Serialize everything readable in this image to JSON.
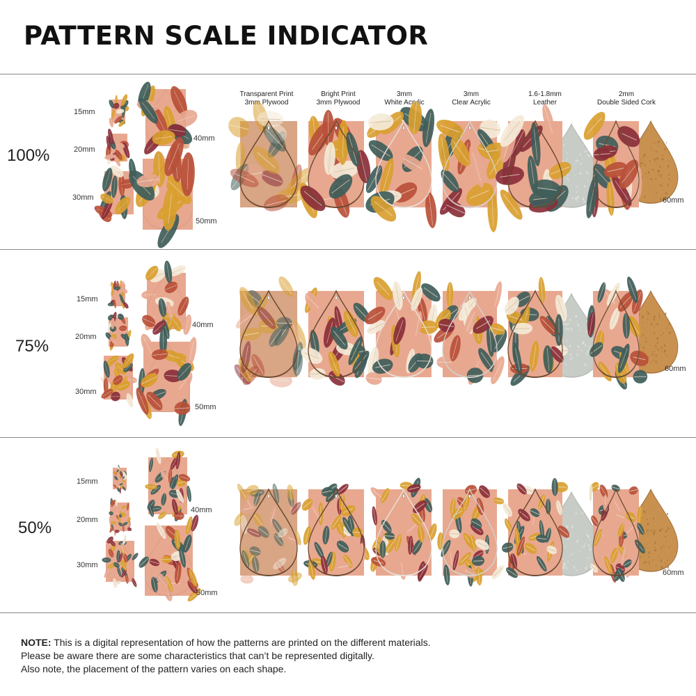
{
  "title": "PATTERN SCALE INDICATOR",
  "columns": [
    {
      "line1": "Transparent Print",
      "line2": "3mm Plywood"
    },
    {
      "line1": "Bright Print",
      "line2": "3mm Plywood"
    },
    {
      "line1": "3mm",
      "line2": "White Acrylic"
    },
    {
      "line1": "3mm",
      "line2": "Clear Acrylic"
    },
    {
      "line1": "1.6-1.8mm",
      "line2": "Leather"
    },
    {
      "line1": "2mm",
      "line2": "Double Sided Cork"
    }
  ],
  "sizes": {
    "s15": "15mm",
    "s20": "20mm",
    "s30": "30mm",
    "s40": "40mm",
    "s50": "50mm",
    "s60": "60mm"
  },
  "sections": [
    {
      "scale": "100%"
    },
    {
      "scale": "75%"
    },
    {
      "scale": "50%"
    }
  ],
  "note": {
    "label": "NOTE:",
    "line1": " This is a digital representation of how the patterns are printed on the different materials.",
    "line2": "Please be aware there are some characteristics that can’t be represented digitally.",
    "line3": "Also note, the placement of the pattern varies on each shape."
  },
  "colors": {
    "rust": "#b8503a",
    "mustard": "#d9a030",
    "teal": "#3f5d5a",
    "blush": "#e8a890",
    "cream": "#f4ead8",
    "burgundy": "#8a2f3a",
    "wood_edge": "#6b4a32",
    "leather_back": "#c8ccc6",
    "cork": "#c8914f"
  }
}
